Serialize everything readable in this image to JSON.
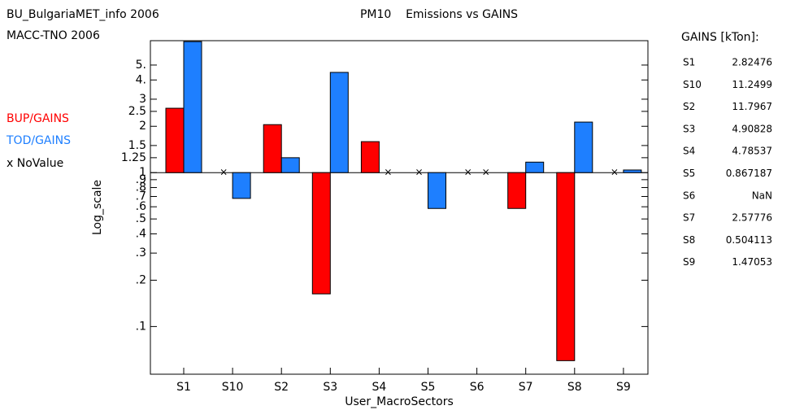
{
  "chart_data": {
    "type": "bar",
    "title": "PM10    Emissions vs GAINS",
    "subtitles": [
      "BU_BulgariaMET_info 2006",
      "MACC-TNO 2006"
    ],
    "x_label": "User_MacroSectors",
    "y_label": "Log_scale",
    "log_scale": true,
    "no_value_label": "x NoValue",
    "categories": [
      "S1",
      "S10",
      "S2",
      "S3",
      "S4",
      "S5",
      "S6",
      "S7",
      "S8",
      "S9"
    ],
    "series": [
      {
        "name": "BUP/GAINS",
        "color": "#ff0000",
        "values": [
          2.62,
          null,
          2.05,
          0.163,
          1.59,
          null,
          null,
          0.585,
          0.06,
          null
        ]
      },
      {
        "name": "TOD/GAINS",
        "color": "#1e7fff",
        "values": [
          7.1,
          0.68,
          1.25,
          4.48,
          null,
          0.585,
          null,
          1.17,
          2.13,
          1.04
        ]
      }
    ],
    "ylim": [
      0.049,
      7.2
    ],
    "yticks": [
      {
        "value": 5,
        "label": "5."
      },
      {
        "value": 4,
        "label": "4."
      },
      3,
      2.5,
      2,
      1.5,
      1.25,
      1,
      {
        "value": 0.9,
        "label": ".9"
      },
      {
        "value": 0.8,
        "label": ".8"
      },
      {
        "value": 0.7,
        "label": ".7"
      },
      {
        "value": 0.6,
        "label": ".6"
      },
      {
        "value": 0.5,
        "label": ".5"
      },
      {
        "value": 0.4,
        "label": ".4"
      },
      {
        "value": 0.3,
        "label": ".3"
      },
      {
        "value": 0.2,
        "label": ".2"
      },
      {
        "value": 0.1,
        "label": ".1"
      }
    ],
    "side_table": {
      "title": "GAINS [kTon]:",
      "rows": [
        [
          "S1",
          2.82476
        ],
        [
          "S10",
          11.2499
        ],
        [
          "S2",
          11.7967
        ],
        [
          "S3",
          4.90828
        ],
        [
          "S4",
          4.78537
        ],
        [
          "S5",
          0.867187
        ],
        [
          "S6",
          "NaN"
        ],
        [
          "S7",
          2.57776
        ],
        [
          "S8",
          0.504113
        ],
        [
          "S9",
          1.47053
        ]
      ]
    }
  }
}
